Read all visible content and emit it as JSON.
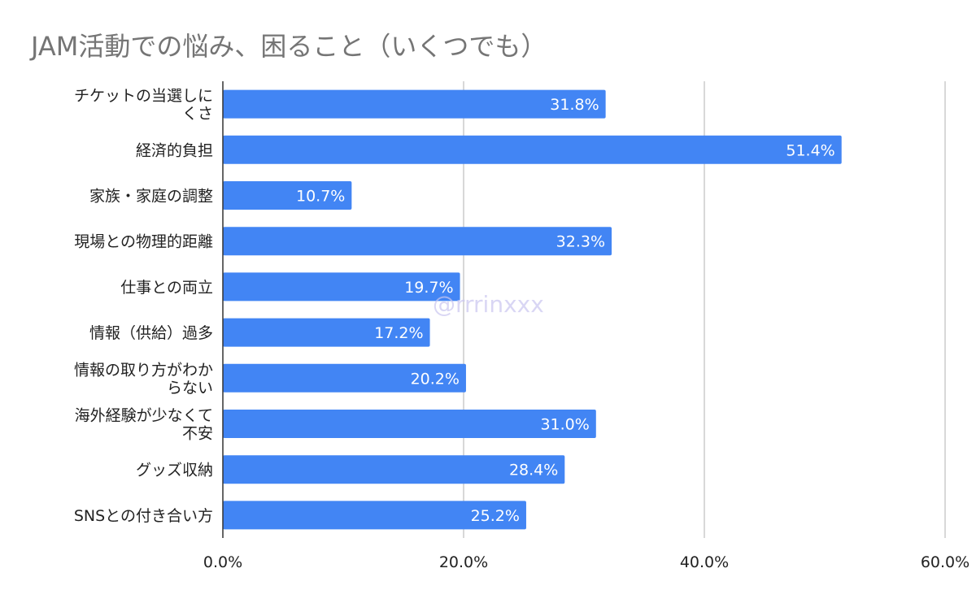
{
  "chart_data": {
    "type": "bar",
    "orientation": "horizontal",
    "title": "JAM活動での悩み、困ること（いくつでも）",
    "categories": [
      [
        "チケットの当選しに",
        "くさ"
      ],
      [
        "経済的負担"
      ],
      [
        "家族・家庭の調整"
      ],
      [
        "現場との物理的距離"
      ],
      [
        "仕事との両立"
      ],
      [
        "情報（供給）過多"
      ],
      [
        "情報の取り方がわか",
        "らない"
      ],
      [
        "海外経験が少なくて",
        "不安"
      ],
      [
        "グッズ収納"
      ],
      [
        "SNSとの付き合い方"
      ]
    ],
    "values": [
      31.8,
      51.4,
      10.7,
      32.3,
      19.7,
      17.2,
      20.2,
      31.0,
      28.4,
      25.2
    ],
    "value_labels": [
      "31.8%",
      "51.4%",
      "10.7%",
      "32.3%",
      "19.7%",
      "17.2%",
      "20.2%",
      "31.0%",
      "28.4%",
      "25.2%"
    ],
    "xlim": [
      0,
      60
    ],
    "xticks": [
      0,
      20,
      40,
      60
    ],
    "xtick_labels": [
      "0.0%",
      "20.0%",
      "40.0%",
      "60.0%"
    ],
    "xlabel": "",
    "ylabel": "",
    "grid": true,
    "bar_color": "#4285f4",
    "watermark": "@rrrinxxx"
  }
}
